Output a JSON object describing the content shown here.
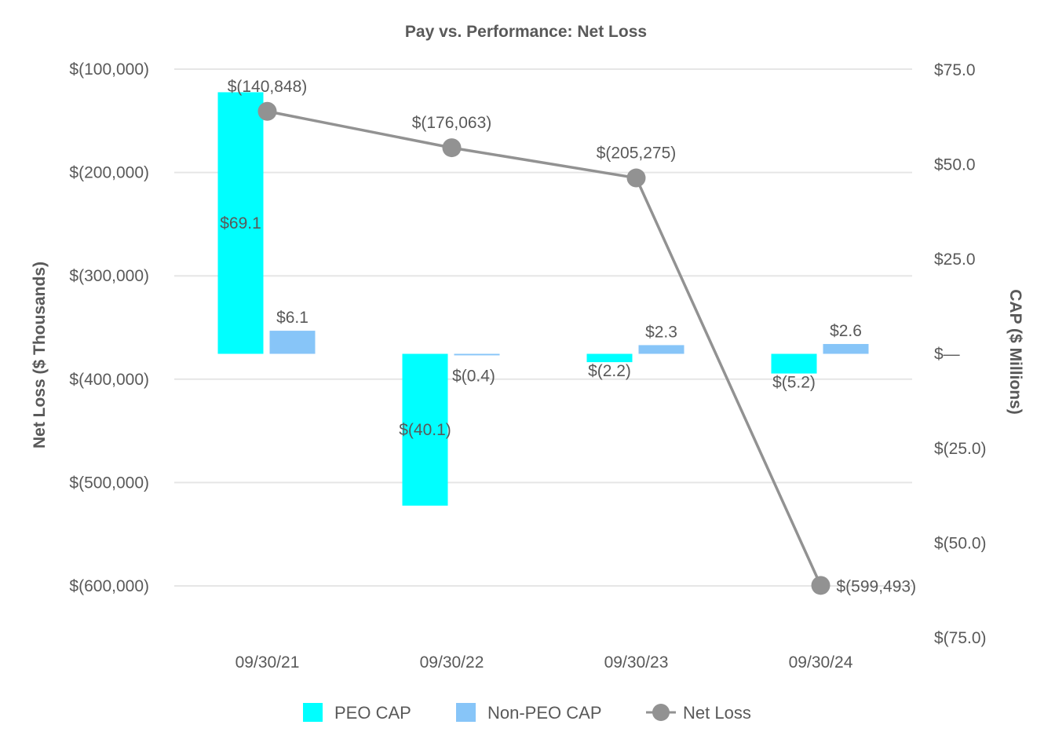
{
  "chart_data": {
    "type": "bar",
    "title": "Pay vs. Performance: Net Loss",
    "categories": [
      "09/30/21",
      "09/30/22",
      "09/30/23",
      "09/30/24"
    ],
    "left_axis": {
      "label": "Net Loss ($ Thousands)",
      "ylim": [
        -650000,
        -100000
      ],
      "ticks": [
        -100000,
        -200000,
        -300000,
        -400000,
        -500000,
        -600000
      ],
      "tick_labels": [
        "$(100,000)",
        "$(200,000)",
        "$(300,000)",
        "$(400,000)",
        "$(500,000)",
        "$(600,000)"
      ]
    },
    "right_axis": {
      "label": "CAP ($ Millions)",
      "ylim": [
        -75,
        75
      ],
      "ticks": [
        75,
        50,
        25,
        0,
        -25,
        -50,
        -75
      ],
      "tick_labels": [
        "$75.0",
        "$50.0",
        "$25.0",
        "$—",
        "$(25.0)",
        "$(50.0)",
        "$(75.0)"
      ]
    },
    "series": [
      {
        "name": "PEO CAP",
        "type": "bar",
        "axis": "right",
        "color": "#00FFFF",
        "values": [
          69.1,
          -40.1,
          -2.2,
          -5.2
        ],
        "labels": [
          "$69.1",
          "$(40.1)",
          "$(2.2)",
          "$(5.2)"
        ]
      },
      {
        "name": "Non-PEO CAP",
        "type": "bar",
        "axis": "right",
        "color": "#87C5F8",
        "values": [
          6.1,
          -0.4,
          2.3,
          2.6
        ],
        "labels": [
          "$6.1",
          "$(0.4)",
          "$2.3",
          "$2.6"
        ]
      },
      {
        "name": "Net Loss",
        "type": "line",
        "axis": "left",
        "color": "#929292",
        "values": [
          -140848,
          -176063,
          -205275,
          -599493
        ],
        "labels": [
          "$(140,848)",
          "$(176,063)",
          "$(205,275)",
          "$(599,493)"
        ]
      }
    ],
    "legend": [
      "PEO CAP",
      "Non-PEO CAP",
      "Net Loss"
    ],
    "legend_position": "bottom",
    "grid": true
  }
}
